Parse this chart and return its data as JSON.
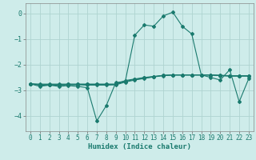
{
  "xlabel": "Humidex (Indice chaleur)",
  "bg_color": "#ceecea",
  "grid_color": "#aed4d0",
  "line_color": "#1a7a6e",
  "xlim": [
    -0.5,
    23.5
  ],
  "ylim": [
    -4.6,
    0.4
  ],
  "yticks": [
    0,
    -1,
    -2,
    -3,
    -4
  ],
  "xticks": [
    0,
    1,
    2,
    3,
    4,
    5,
    6,
    7,
    8,
    9,
    10,
    11,
    12,
    13,
    14,
    15,
    16,
    17,
    18,
    19,
    20,
    21,
    22,
    23
  ],
  "series": [
    {
      "x": [
        0,
        1,
        2,
        3,
        4,
        5,
        6,
        7,
        8,
        9,
        10,
        11,
        12,
        13,
        14,
        15,
        16,
        17,
        18,
        19,
        20,
        21,
        22,
        23
      ],
      "y": [
        -2.75,
        -2.85,
        -2.8,
        -2.85,
        -2.82,
        -2.85,
        -2.9,
        -4.2,
        -3.6,
        -2.7,
        -2.65,
        -0.85,
        -0.45,
        -0.5,
        -0.1,
        0.05,
        -0.5,
        -0.8,
        -2.4,
        -2.5,
        -2.6,
        -2.2,
        -3.45,
        -2.55
      ]
    },
    {
      "x": [
        0,
        1,
        2,
        3,
        4,
        5,
        6,
        7,
        8,
        9,
        10,
        11,
        12,
        13,
        14,
        15,
        16,
        17,
        18,
        19,
        20,
        21,
        22,
        23
      ],
      "y": [
        -2.75,
        -2.78,
        -2.78,
        -2.78,
        -2.77,
        -2.77,
        -2.77,
        -2.77,
        -2.77,
        -2.77,
        -2.65,
        -2.58,
        -2.52,
        -2.47,
        -2.42,
        -2.4,
        -2.4,
        -2.4,
        -2.4,
        -2.4,
        -2.42,
        -2.44,
        -2.44,
        -2.44
      ]
    },
    {
      "x": [
        0,
        1,
        2,
        3,
        4,
        5,
        6,
        7,
        8,
        9,
        10,
        11,
        12,
        13,
        14,
        15,
        16,
        17,
        18,
        19,
        20,
        21,
        22,
        23
      ],
      "y": [
        -2.75,
        -2.8,
        -2.8,
        -2.8,
        -2.79,
        -2.79,
        -2.8,
        -2.8,
        -2.8,
        -2.79,
        -2.68,
        -2.6,
        -2.54,
        -2.48,
        -2.43,
        -2.41,
        -2.41,
        -2.41,
        -2.41,
        -2.41,
        -2.43,
        -2.45,
        -2.45,
        -2.45
      ]
    },
    {
      "x": [
        0,
        1,
        2,
        3,
        4,
        5,
        6,
        7,
        8,
        9,
        10,
        11,
        12,
        13,
        14,
        15,
        16,
        17,
        18,
        19,
        20,
        21,
        22,
        23
      ],
      "y": [
        -2.75,
        -2.76,
        -2.76,
        -2.76,
        -2.76,
        -2.76,
        -2.76,
        -2.76,
        -2.76,
        -2.76,
        -2.62,
        -2.56,
        -2.5,
        -2.46,
        -2.42,
        -2.4,
        -2.4,
        -2.4,
        -2.4,
        -2.4,
        -2.42,
        -2.43,
        -2.43,
        -2.43
      ]
    }
  ],
  "marker": "D",
  "markersize": 2.0,
  "linewidth": 0.8,
  "tick_fontsize": 5.5,
  "xlabel_fontsize": 6.5
}
